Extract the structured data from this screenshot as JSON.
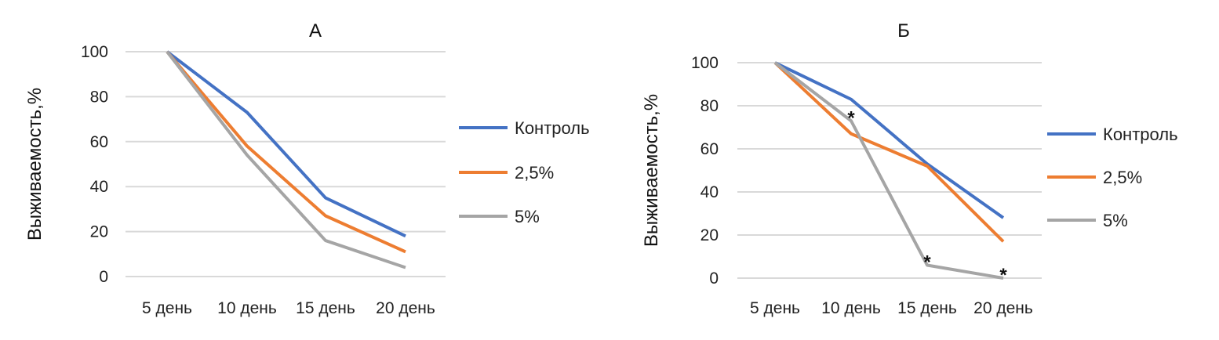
{
  "chart_data": [
    {
      "type": "line",
      "title": "А",
      "ylabel": "Выживаемость,%",
      "xlabel": "",
      "categories": [
        "5 день",
        "10 день",
        "15 день",
        "20 день"
      ],
      "ylim": [
        0,
        100
      ],
      "yticks": [
        0,
        20,
        40,
        60,
        80,
        100
      ],
      "grid": true,
      "legend": "right",
      "series": [
        {
          "name": "Контроль",
          "color": "#4472C4",
          "values": [
            100,
            73,
            35,
            18
          ]
        },
        {
          "name": "2,5%",
          "color": "#ED7D31",
          "values": [
            100,
            58,
            27,
            11
          ]
        },
        {
          "name": "5%",
          "color": "#A5A5A5",
          "values": [
            100,
            54,
            16,
            4
          ]
        }
      ],
      "annotations": []
    },
    {
      "type": "line",
      "title": "Б",
      "ylabel": "Выживаемость,%",
      "xlabel": "",
      "categories": [
        "5 день",
        "10 день",
        "15 день",
        "20 день"
      ],
      "ylim": [
        0,
        100
      ],
      "yticks": [
        0,
        20,
        40,
        60,
        80,
        100
      ],
      "grid": true,
      "legend": "right",
      "series": [
        {
          "name": "Контроль",
          "color": "#4472C4",
          "values": [
            100,
            83,
            53,
            28
          ]
        },
        {
          "name": "2,5%",
          "color": "#ED7D31",
          "values": [
            100,
            67,
            52,
            17
          ]
        },
        {
          "name": "5%",
          "color": "#A5A5A5",
          "values": [
            100,
            73,
            6,
            0
          ]
        }
      ],
      "annotations": [
        {
          "text": "*",
          "series": "5%",
          "category": "10 день"
        },
        {
          "text": "*",
          "series": "5%",
          "category": "15 день"
        },
        {
          "text": "*",
          "series": "5%",
          "category": "20 день"
        }
      ]
    }
  ]
}
